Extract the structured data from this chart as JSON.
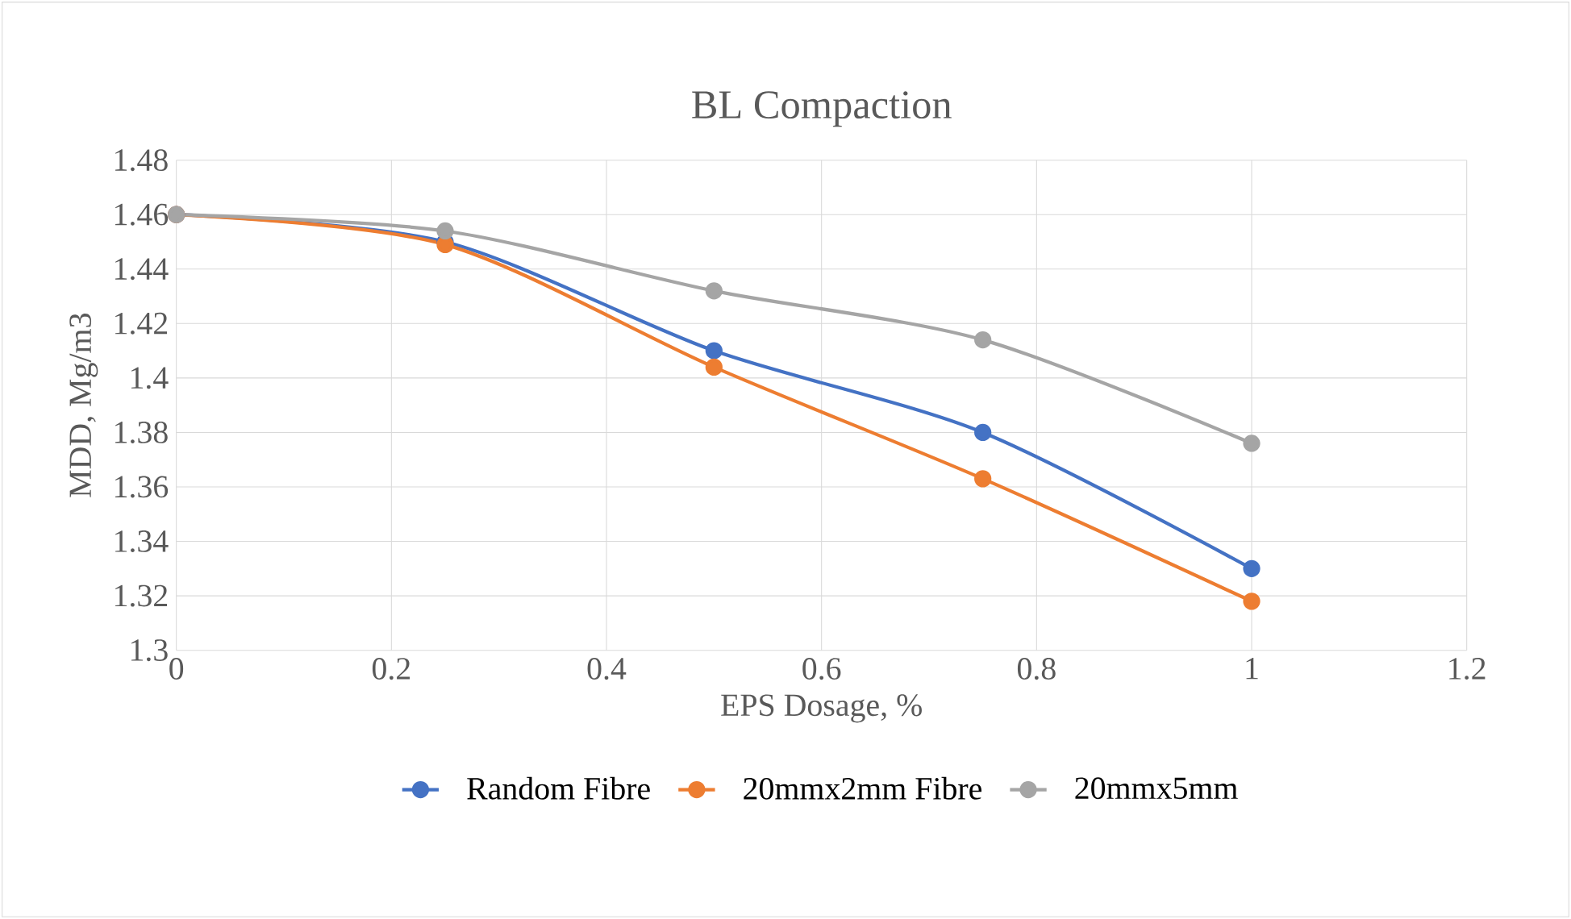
{
  "chart_data": {
    "type": "line",
    "title": "BL Compaction",
    "xlabel": "EPS Dosage, %",
    "ylabel": "MDD, Mg/m3",
    "x": [
      0,
      0.25,
      0.5,
      0.75,
      1
    ],
    "series": [
      {
        "name": "Random Fibre",
        "color": "#4472c4",
        "values": [
          1.46,
          1.45,
          1.41,
          1.38,
          1.33
        ]
      },
      {
        "name": "20mmx2mm Fibre",
        "color": "#ed7d31",
        "values": [
          1.46,
          1.449,
          1.404,
          1.363,
          1.318
        ]
      },
      {
        "name": "20mmx5mm",
        "color": "#a5a5a5",
        "values": [
          1.46,
          1.454,
          1.432,
          1.414,
          1.376
        ]
      }
    ],
    "xlim": [
      0,
      1.2
    ],
    "xticks": [
      0,
      0.2,
      0.4,
      0.6,
      0.8,
      1,
      1.2
    ],
    "ylim": [
      1.3,
      1.48
    ],
    "yticks": [
      1.3,
      1.32,
      1.34,
      1.36,
      1.38,
      1.4,
      1.42,
      1.44,
      1.46,
      1.48
    ],
    "grid": true,
    "legend": "bottom",
    "marker": "circle",
    "line_style": "solid"
  }
}
